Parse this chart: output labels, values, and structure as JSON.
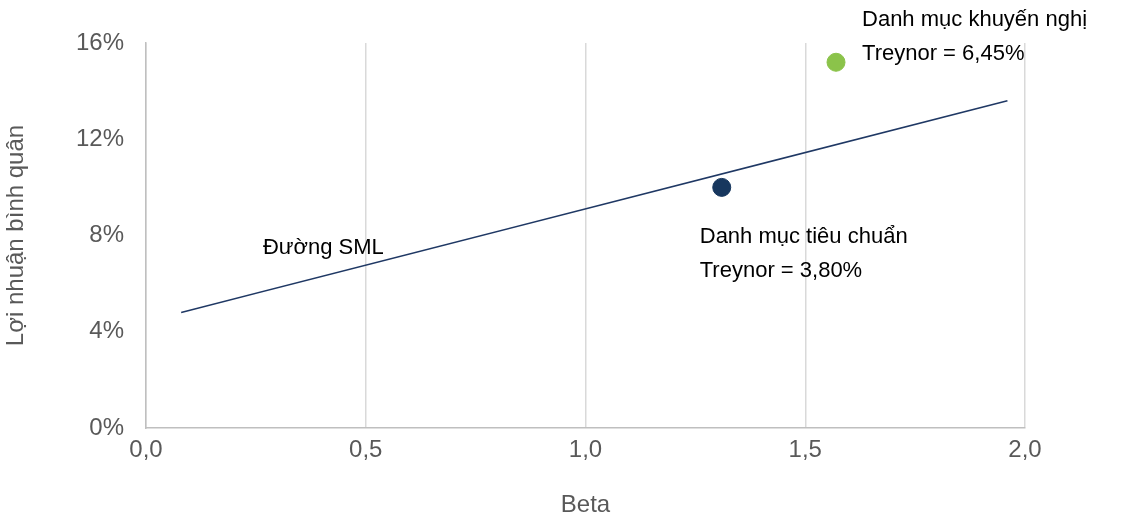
{
  "chart_data": {
    "type": "scatter",
    "xlabel": "Beta",
    "ylabel": "Lợi nhuận bình quân",
    "xlim": [
      0,
      2
    ],
    "xticks": [
      {
        "value": 0,
        "label": "0,0"
      },
      {
        "value": 0.5,
        "label": "0,5"
      },
      {
        "value": 1,
        "label": "1,0"
      },
      {
        "value": 1.5,
        "label": "1,5"
      },
      {
        "value": 2,
        "label": "2,0"
      }
    ],
    "ylim": [
      0,
      16
    ],
    "yticks": [
      {
        "value": 0,
        "label": "0%"
      },
      {
        "value": 4,
        "label": "4%"
      },
      {
        "value": 8,
        "label": "8%"
      },
      {
        "value": 12,
        "label": "12%"
      },
      {
        "value": 16,
        "label": "16%"
      }
    ],
    "grid": "x",
    "legend": false,
    "series": [
      {
        "name": "Đường SML",
        "type": "line",
        "color": "#1f3864",
        "x": [
          0.08,
          1.96
        ],
        "values": [
          4.8,
          13.6
        ]
      },
      {
        "name": "Danh mục tiêu chuẩn",
        "color": "#17375e",
        "x": [
          1.31
        ],
        "values": [
          10.0
        ]
      },
      {
        "name": "Danh mục khuyến nghị",
        "color": "#8bc34a",
        "x": [
          1.57
        ],
        "values": [
          15.2
        ]
      }
    ],
    "annotations": [
      "Treynor = 3,80%",
      "Treynor = 6,45%"
    ]
  }
}
